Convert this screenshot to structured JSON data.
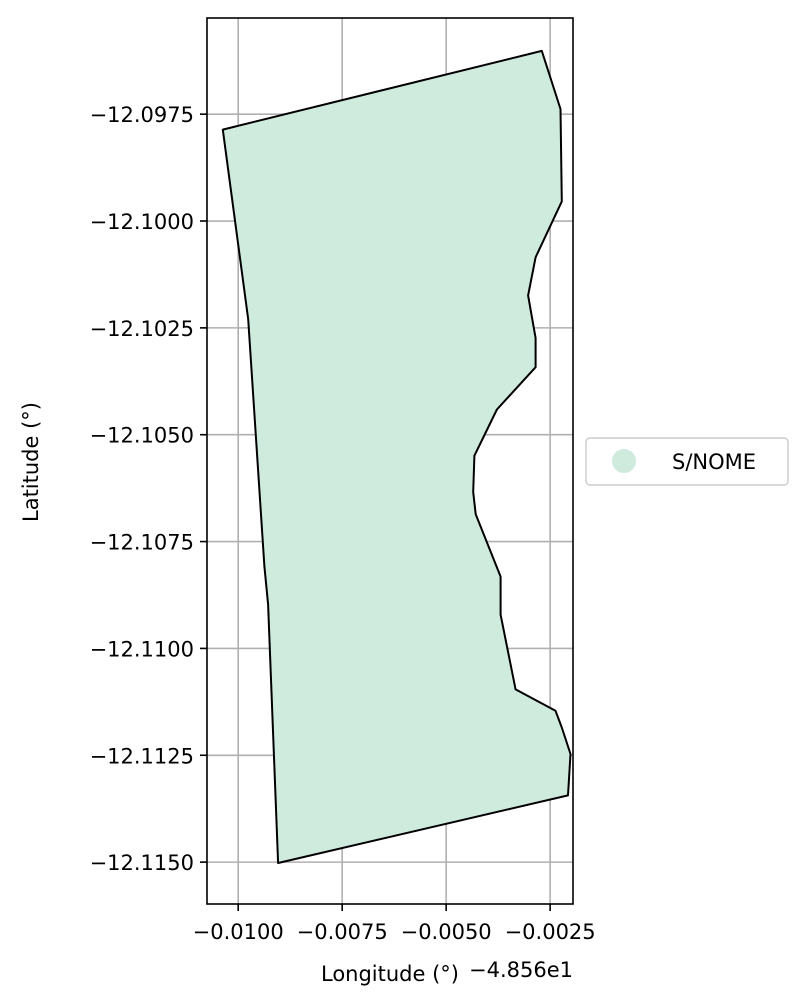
{
  "chart_data": {
    "type": "area",
    "xlabel": "Longitude (°)",
    "ylabel": "Latitude (°)",
    "x_offset_label": "−4.856e1",
    "xlim": [
      -0.01075,
      -0.00195
    ],
    "ylim": [
      -12.11598,
      -12.09525
    ],
    "x_ticks": [
      -0.01,
      -0.0075,
      -0.005,
      -0.0025
    ],
    "x_tick_labels": [
      "−0.0100",
      "−0.0075",
      "−0.0050",
      "−0.0025"
    ],
    "y_ticks": [
      -12.0975,
      -12.1,
      -12.1025,
      -12.105,
      -12.1075,
      -12.11,
      -12.1125,
      -12.115
    ],
    "y_tick_labels": [
      "−12.0975",
      "−12.1000",
      "−12.1025",
      "−12.1050",
      "−12.1075",
      "−12.1100",
      "−12.1125",
      "−12.1150"
    ],
    "grid": true,
    "legend_position": "center-right",
    "series": [
      {
        "name": "S/NOME",
        "color": "#cfebdd",
        "edge_color": "#000000",
        "points": [
          [
            -0.01037,
            -12.09786
          ],
          [
            -0.0027,
            -12.09602
          ],
          [
            -0.00225,
            -12.09738
          ],
          [
            -0.00222,
            -12.09954
          ],
          [
            -0.00285,
            -12.10085
          ],
          [
            -0.00303,
            -12.10174
          ],
          [
            -0.00285,
            -12.10274
          ],
          [
            -0.00285,
            -12.10342
          ],
          [
            -0.00378,
            -12.10441
          ],
          [
            -0.00432,
            -12.10549
          ],
          [
            -0.00435,
            -12.10634
          ],
          [
            -0.00429,
            -12.10686
          ],
          [
            -0.00369,
            -12.10832
          ],
          [
            -0.00369,
            -12.10921
          ],
          [
            -0.00333,
            -12.11096
          ],
          [
            -0.00237,
            -12.11146
          ],
          [
            -0.00222,
            -12.11185
          ],
          [
            -0.00201,
            -12.11247
          ],
          [
            -0.00207,
            -12.11344
          ],
          [
            -0.00904,
            -12.11502
          ],
          [
            -0.00928,
            -12.10897
          ],
          [
            -0.00937,
            -12.10808
          ],
          [
            -0.00976,
            -12.1023
          ],
          [
            -0.01037,
            -12.09786
          ]
        ]
      }
    ]
  }
}
